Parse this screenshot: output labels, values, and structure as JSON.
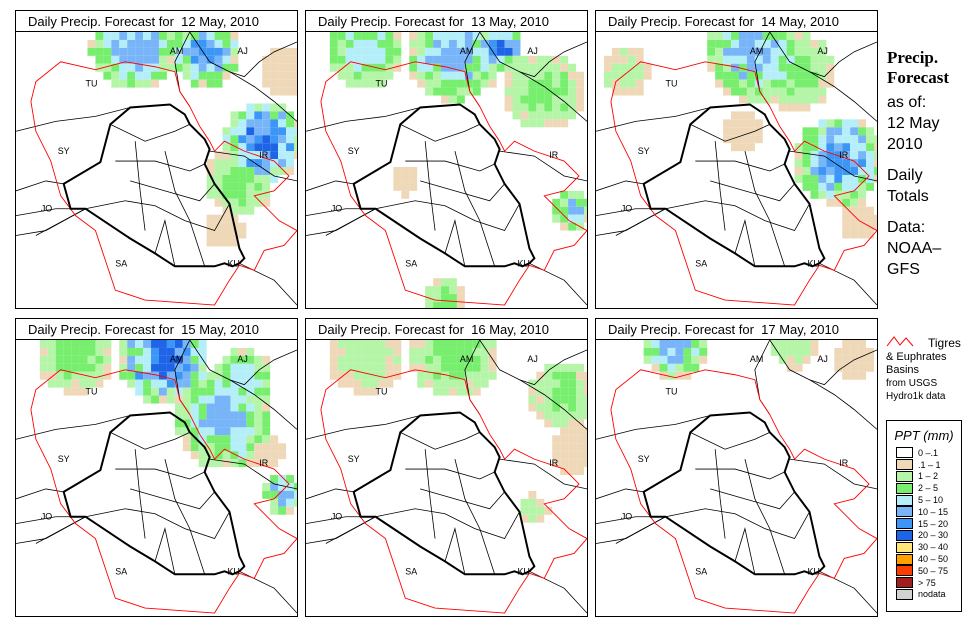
{
  "panels": [
    {
      "title": "Daily Precip. Forecast for  12 May, 2010"
    },
    {
      "title": "Daily Precip. Forecast for  13 May, 2010"
    },
    {
      "title": "Daily Precip. Forecast for  14 May, 2010"
    },
    {
      "title": "Daily Precip. Forecast for  15 May, 2010"
    },
    {
      "title": "Daily Precip. Forecast for  16 May, 2010"
    },
    {
      "title": "Daily Precip. Forecast for  17 May, 2010"
    }
  ],
  "map_labels": [
    "AM",
    "AJ",
    "TU",
    "SY",
    "IR",
    "JO",
    "SA",
    "KU"
  ],
  "side": {
    "title1": "Precip.",
    "title2": "Forecast",
    "asof": "as of:",
    "date1": "12 May",
    "date2": "2010",
    "daily1": "Daily",
    "daily2": "Totals",
    "data1": "Data:",
    "data2": "NOAA–",
    "data3": "GFS"
  },
  "basin_legend": {
    "line1": "Tigres",
    "line2": "& Euphrates",
    "line3": "Basins",
    "line4": "from USGS",
    "line5": "Hydro1k data",
    "color": "#ff0000"
  },
  "legend": {
    "title": "PPT (mm)",
    "items": [
      {
        "label": "0 –.1",
        "color": "#ffffff"
      },
      {
        "label": ".1 – 1",
        "color": "#eed8b8"
      },
      {
        "label": "1 – 2",
        "color": "#b4f5a8"
      },
      {
        "label": "2 – 5",
        "color": "#78ee6e"
      },
      {
        "label": "5 – 10",
        "color": "#b4eef8"
      },
      {
        "label": "10 – 15",
        "color": "#78b4f8"
      },
      {
        "label": "15 – 20",
        "color": "#3c96f5"
      },
      {
        "label": "20 – 30",
        "color": "#1e64e6"
      },
      {
        "label": "30 – 40",
        "color": "#ffe678"
      },
      {
        "label": "40 – 50",
        "color": "#ffa000"
      },
      {
        "label": "50 – 75",
        "color": "#ff3c00"
      },
      {
        "label": "> 75",
        "color": "#a01e1e"
      },
      {
        "label": "nodata",
        "color": "#d2d2d2"
      }
    ]
  }
}
